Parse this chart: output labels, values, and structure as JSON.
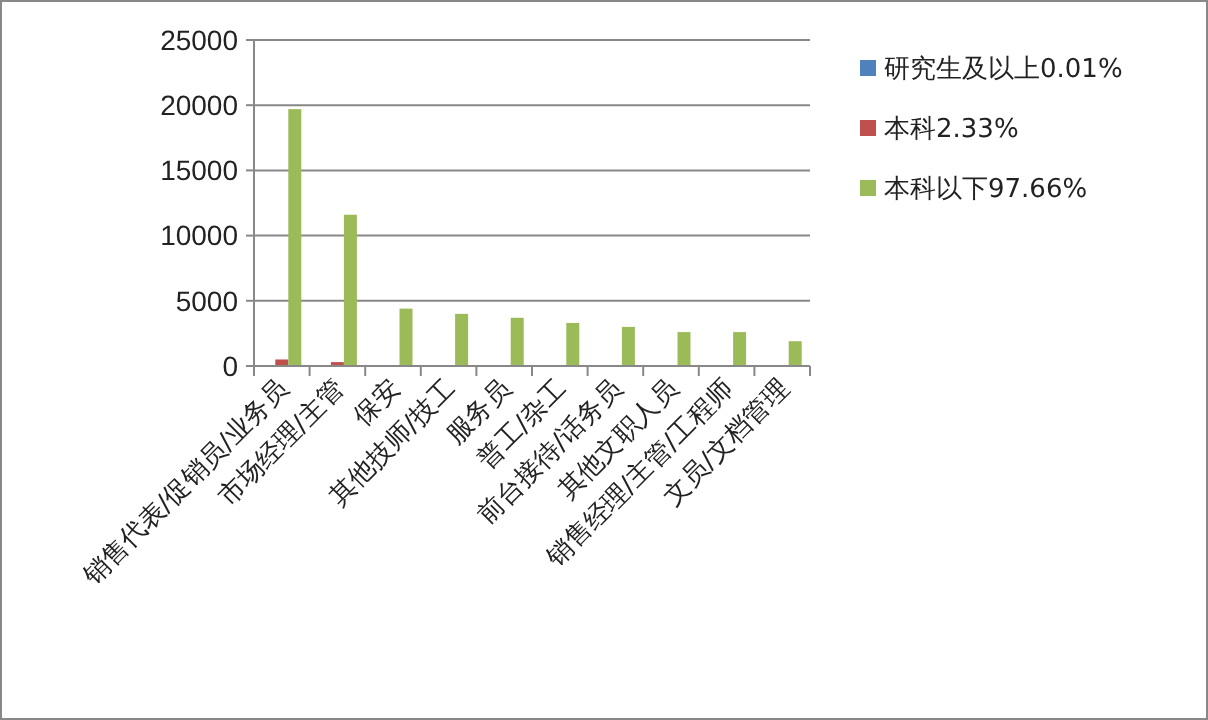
{
  "chart_data": {
    "type": "bar",
    "categories": [
      "销售代表/促销员/业务员",
      "市场经理/主管",
      "保安",
      "其他技师/技工",
      "服务员",
      "普工/杂工",
      "前台接待/话务员",
      "其他文职人员",
      "销售经理/主管/工程师",
      "文员/文档管理"
    ],
    "series": [
      {
        "name": "研究生及以上0.01%",
        "color": "#4f81bd",
        "values": [
          0,
          0,
          0,
          0,
          0,
          0,
          0,
          0,
          0,
          0
        ]
      },
      {
        "name": "本科2.33%",
        "color": "#c0504d",
        "values": [
          500,
          300,
          0,
          0,
          0,
          0,
          0,
          0,
          0,
          0
        ]
      },
      {
        "name": "本科以下97.66%",
        "color": "#9bbb59",
        "values": [
          19700,
          11600,
          4400,
          4000,
          3700,
          3300,
          3000,
          2600,
          2600,
          1900
        ]
      }
    ],
    "ylim": [
      0,
      25000
    ],
    "yticks": [
      0,
      5000,
      10000,
      15000,
      20000,
      25000
    ],
    "grid": "y",
    "legend": "right"
  }
}
